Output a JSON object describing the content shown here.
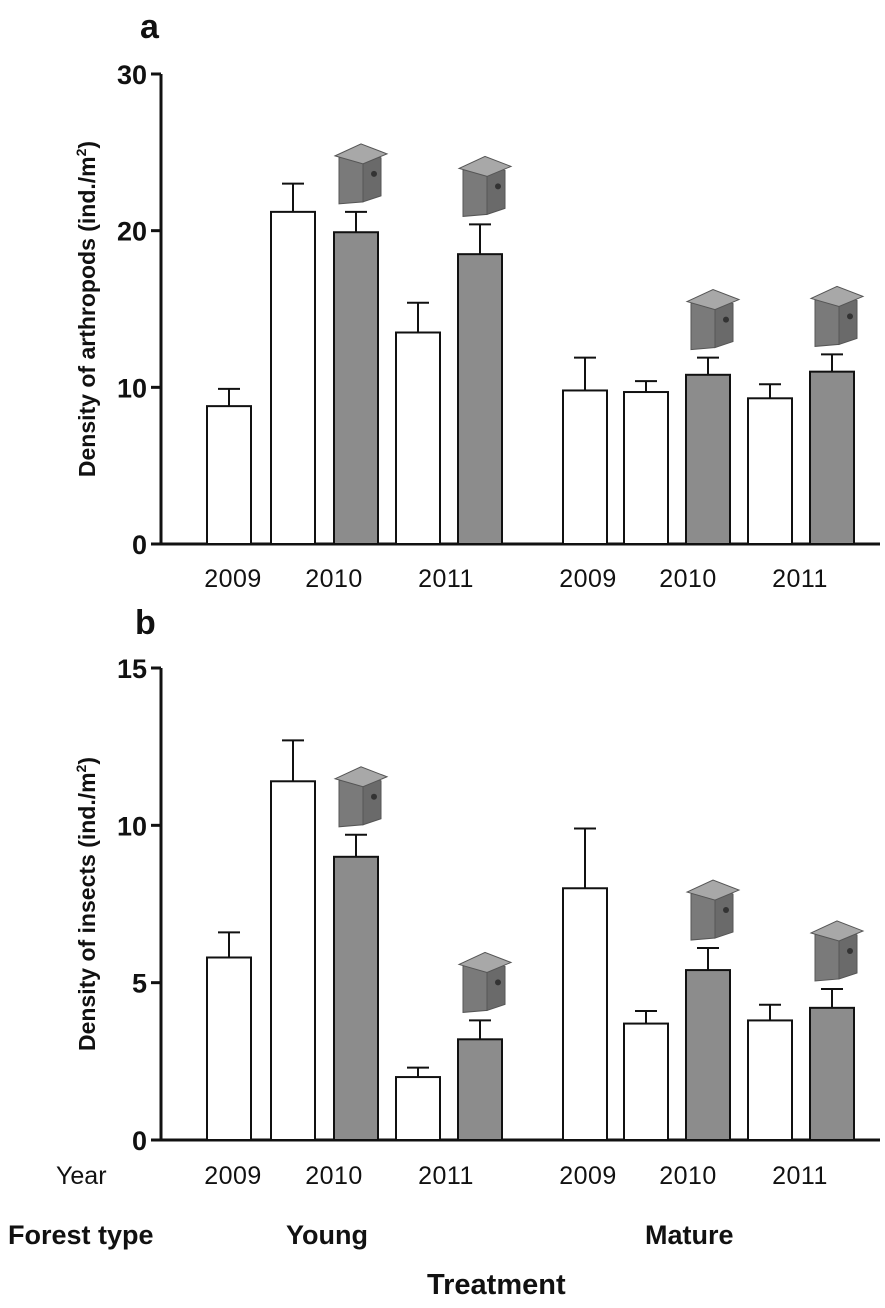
{
  "row_labels": {
    "year": "Year",
    "forest_type": "Forest type",
    "treatment": "Treatment"
  },
  "groups": [
    "Young",
    "Mature"
  ],
  "colors": {
    "control_fill": "#ffffff",
    "nestbox_fill": "#8c8c8c",
    "stroke": "#111111",
    "nestbox_icon": "#7a7a7a",
    "nestbox_icon_light": "#a8a8a8"
  },
  "bar_order": [
    {
      "group": "Young",
      "year": "2009",
      "treatment": "control"
    },
    {
      "group": "Young",
      "year": "2010",
      "treatment": "control"
    },
    {
      "group": "Young",
      "year": "2010",
      "treatment": "nestbox"
    },
    {
      "group": "Young",
      "year": "2011",
      "treatment": "control"
    },
    {
      "group": "Young",
      "year": "2011",
      "treatment": "nestbox"
    },
    {
      "group": "Mature",
      "year": "2009",
      "treatment": "control"
    },
    {
      "group": "Mature",
      "year": "2010",
      "treatment": "control"
    },
    {
      "group": "Mature",
      "year": "2010",
      "treatment": "nestbox"
    },
    {
      "group": "Mature",
      "year": "2011",
      "treatment": "control"
    },
    {
      "group": "Mature",
      "year": "2011",
      "treatment": "nestbox"
    }
  ],
  "chart_data": [
    {
      "panel": "a",
      "type": "bar",
      "ylabel": "Density of arthropods (ind./m²)",
      "ylabel_main": "Density of arthropods (ind./m",
      "ylabel_sup": "2",
      "ylabel_end": ")",
      "ylim": [
        0,
        30
      ],
      "yticks": [
        0,
        10,
        20,
        30
      ],
      "year_labels": [
        "2009",
        "2010",
        "2011",
        "2009",
        "2010",
        "2011"
      ],
      "values": [
        8.8,
        21.2,
        19.9,
        13.5,
        18.5,
        9.8,
        9.7,
        10.8,
        9.3,
        11.0
      ],
      "errors": [
        1.1,
        1.8,
        1.3,
        1.9,
        1.9,
        2.1,
        0.7,
        1.1,
        0.9,
        1.1
      ],
      "grid": false,
      "legend": "none"
    },
    {
      "panel": "b",
      "type": "bar",
      "ylabel": "Density of insects (ind./m²)",
      "ylabel_main": "Density of insects (ind./m",
      "ylabel_sup": "2",
      "ylabel_end": ")",
      "ylim": [
        0,
        15
      ],
      "yticks": [
        0,
        5,
        10,
        15
      ],
      "year_labels": [
        "2009",
        "2010",
        "2011",
        "2009",
        "2010",
        "2011"
      ],
      "values": [
        5.8,
        11.4,
        9.0,
        2.0,
        3.2,
        8.0,
        3.7,
        5.4,
        3.8,
        4.2
      ],
      "errors": [
        0.8,
        1.3,
        0.7,
        0.3,
        0.6,
        1.9,
        0.4,
        0.7,
        0.5,
        0.6
      ],
      "grid": false,
      "legend": "none"
    }
  ]
}
